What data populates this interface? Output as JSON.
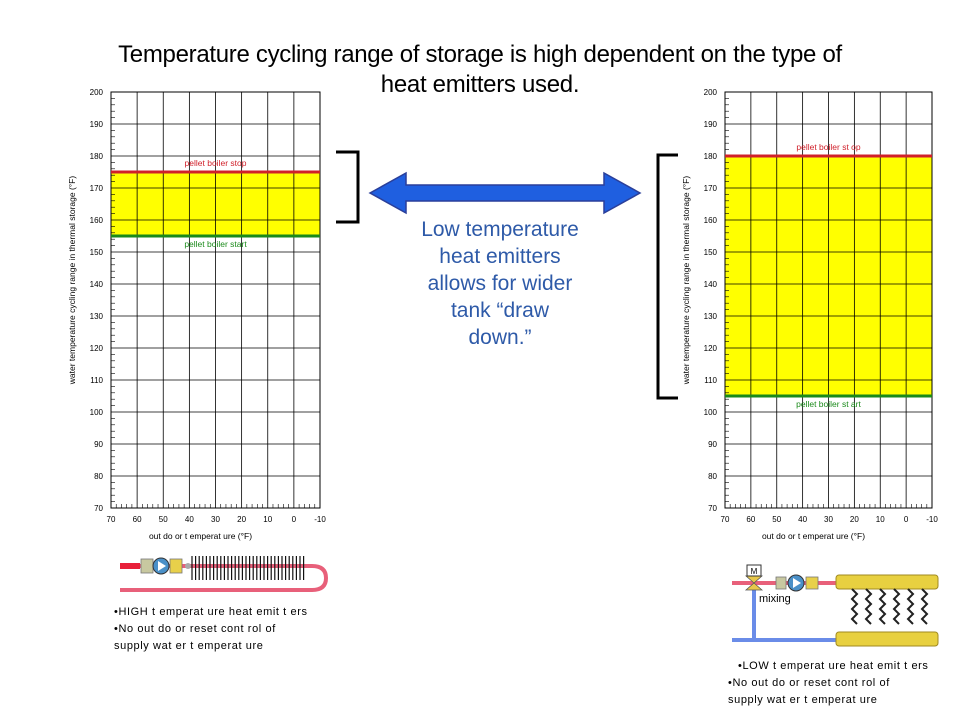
{
  "slide": {
    "title_line1": "Temperature cycling range of storage is high dependent on the type of",
    "title_line2": "heat emitters used."
  },
  "center_message": {
    "lines": [
      "Low temperature",
      "heat emitters",
      "allows for wider",
      "tank “draw",
      "down.”"
    ]
  },
  "colors": {
    "band": "#ffff00",
    "stop_line": "#d0202a",
    "start_line": "#1a8a1a",
    "arrow": "#1f5fe0",
    "text_blue": "#2e5aa8",
    "pipe_hot": "#e8607a",
    "pipe_cold": "#6a8ce8"
  },
  "chart_data": [
    {
      "type": "area",
      "y_label": "water temperature cycling range in thermal storage (°F)",
      "x_label": "out do or t emperat ure (°F)",
      "y_ticks": [
        200,
        190,
        180,
        170,
        160,
        150,
        140,
        130,
        120,
        110,
        100,
        90,
        80,
        70
      ],
      "x_ticks": [
        "70",
        "60",
        "50",
        "40",
        "30",
        "20",
        "10",
        "0",
        "-10"
      ],
      "ylim": [
        70,
        200
      ],
      "xlim": [
        70,
        -10
      ],
      "band": {
        "top": 175,
        "bottom": 155
      },
      "stop_label": "pellet boiler stop",
      "start_label": "pellet boiler start"
    },
    {
      "type": "area",
      "y_label": "water temperature cycling range in thermal storage (°F)",
      "x_label": "out do or t emperat ure (°F)",
      "y_ticks": [
        200,
        190,
        180,
        170,
        160,
        150,
        140,
        130,
        120,
        110,
        100,
        90,
        80,
        70
      ],
      "x_ticks": [
        "70",
        "60",
        "50",
        "40",
        "30",
        "20",
        "10",
        "0",
        "-10"
      ],
      "ylim": [
        70,
        200
      ],
      "xlim": [
        70,
        -10
      ],
      "band": {
        "top": 180,
        "bottom": 105
      },
      "stop_label": "pellet boiler st op",
      "start_label": "pellet boiler st art"
    }
  ],
  "left_notes": {
    "line1": "•HIGH  t emperat ure heat  emit t ers",
    "line2": "•No out do or reset  cont rol of",
    "line3": "supply wat er t emperat ure"
  },
  "right_notes": {
    "line1": "•LOW t emperat ure heat  emit t ers",
    "line2": "•No out do or reset  cont rol of",
    "line3": "supply wat er t emperat ure"
  },
  "mixing_label": "mixing",
  "valve_label": "M"
}
